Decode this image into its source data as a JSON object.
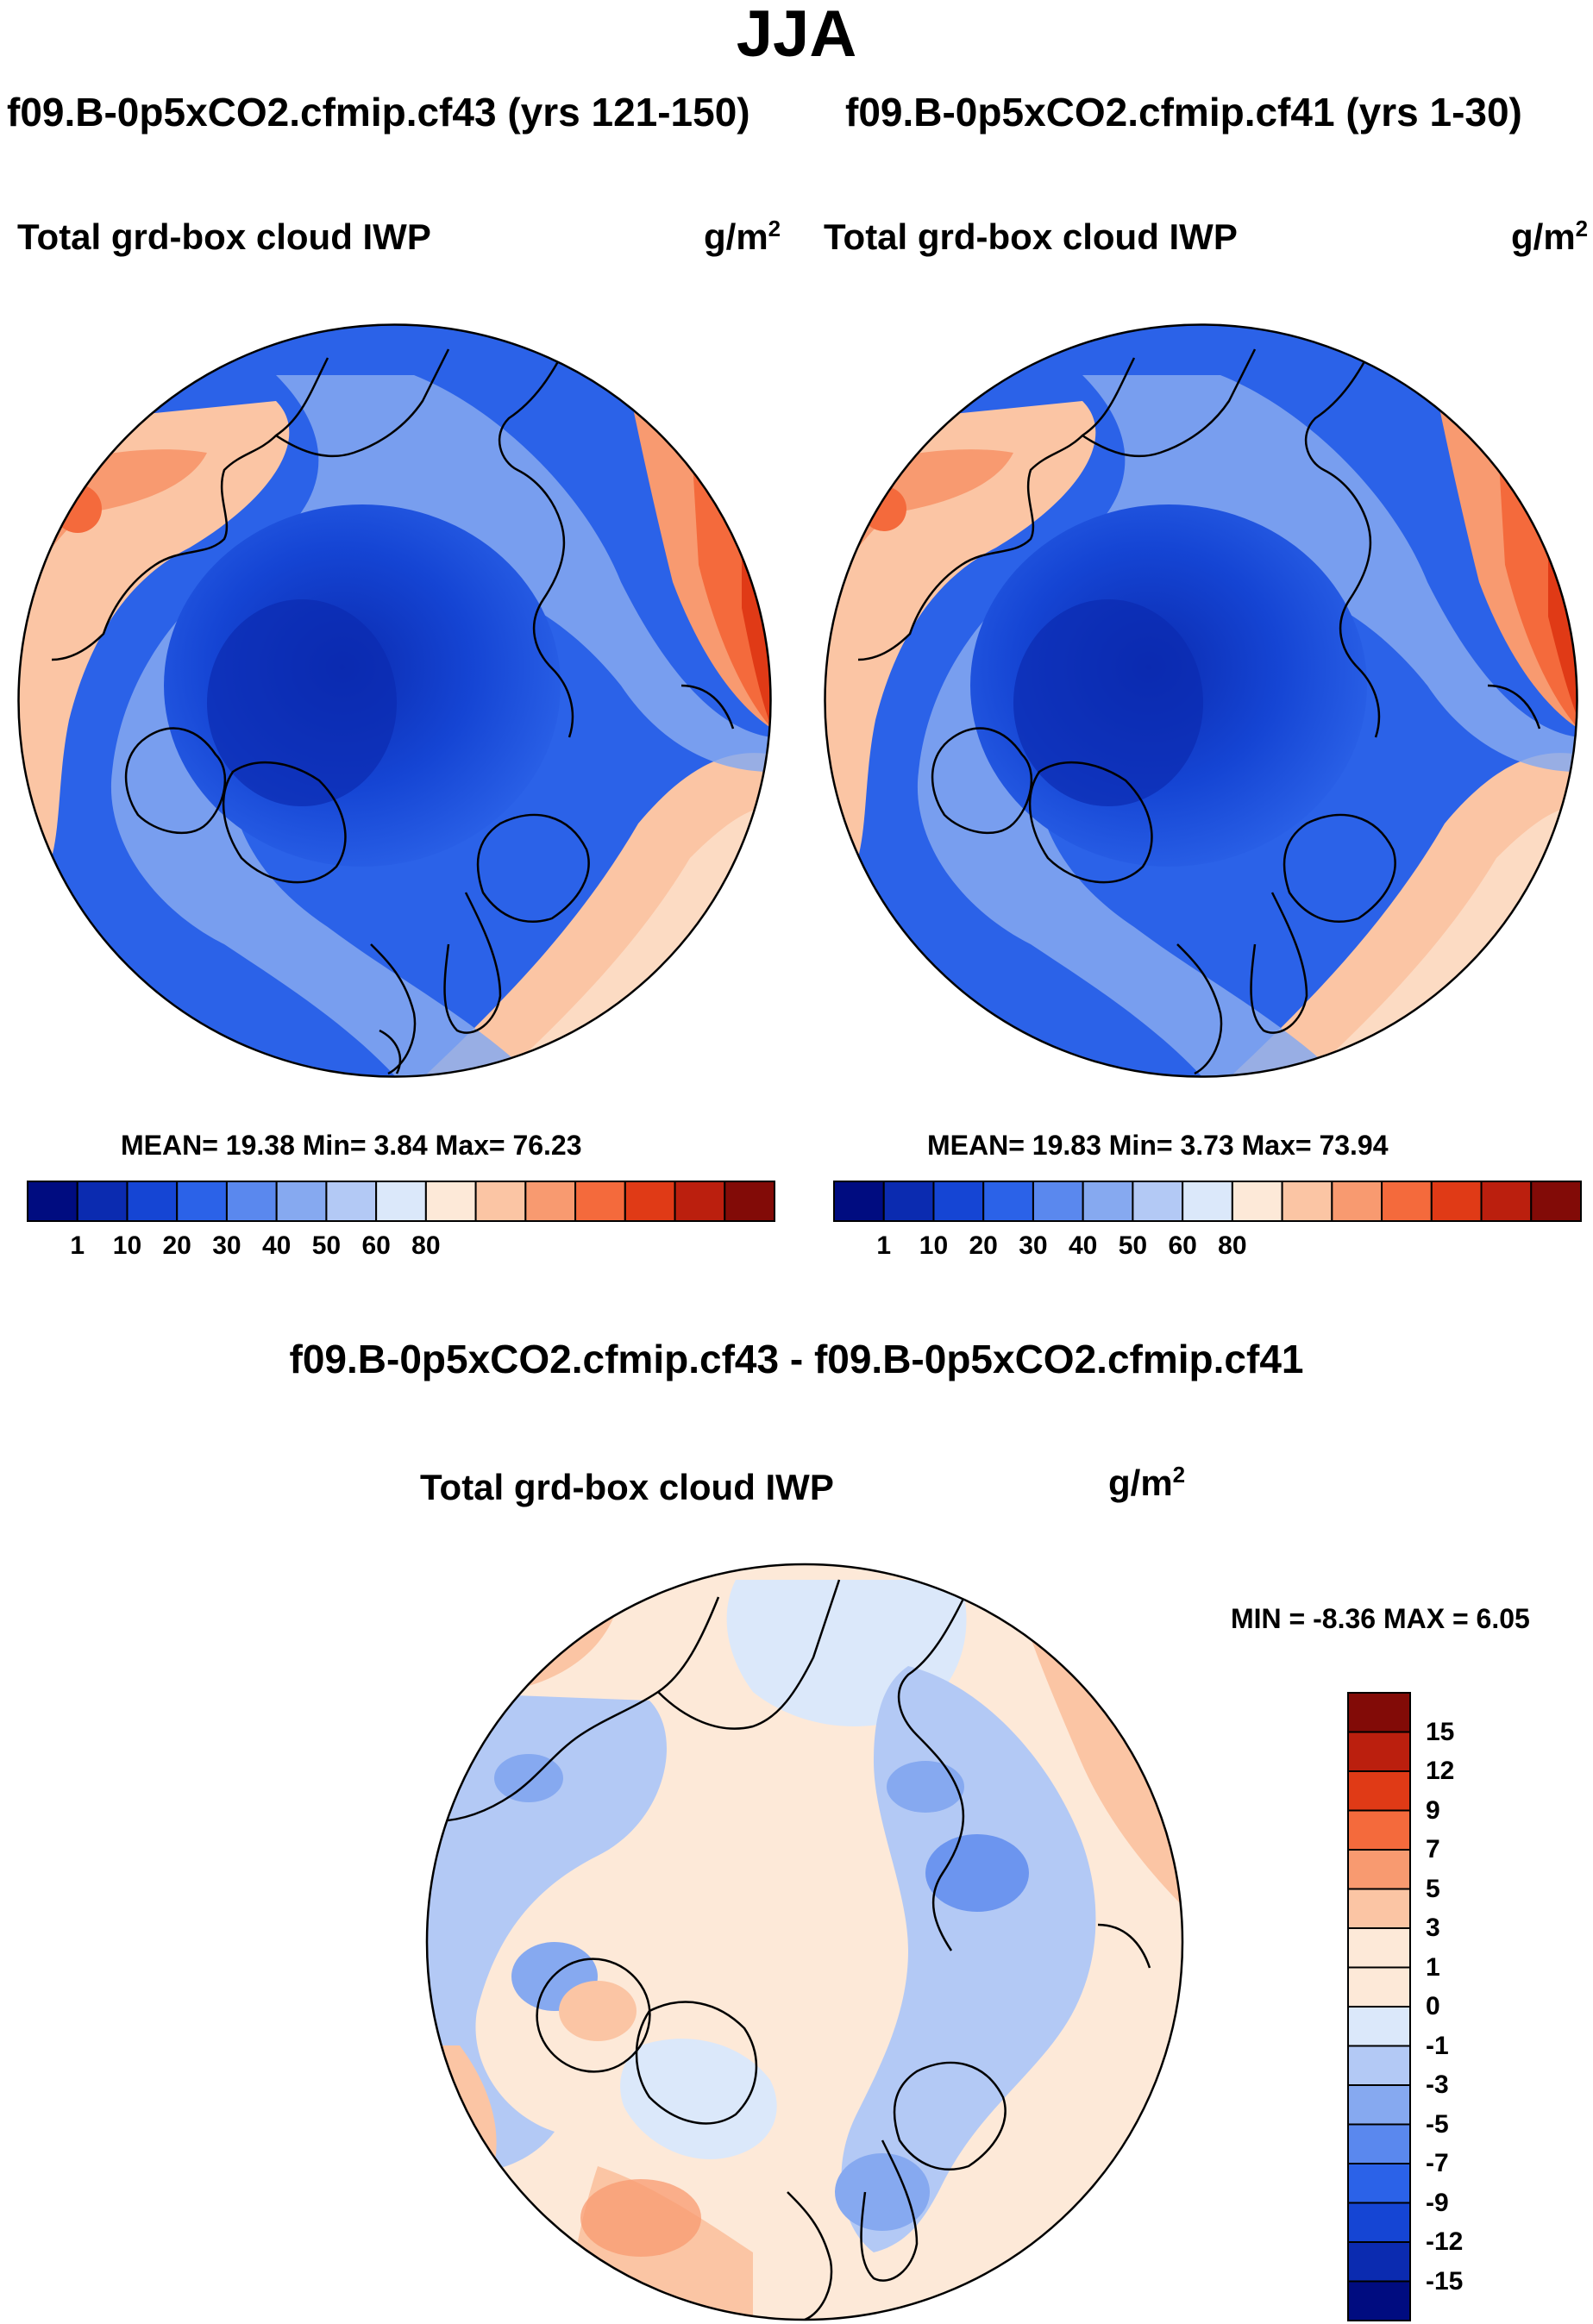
{
  "season": "JJA",
  "panels": [
    {
      "case_title": "f09.B-0p5xCO2.cfmip.cf43 (yrs 121-150)",
      "variable": "Total grd-box cloud IWP",
      "units_base": "g/m",
      "units_exp": "2",
      "stats": "MEAN=  19.38  Min=   3.84  Max=  76.23"
    },
    {
      "case_title": "f09.B-0p5xCO2.cfmip.cf41 (yrs 1-30)",
      "variable": "Total grd-box cloud IWP",
      "units_base": "g/m",
      "units_exp": "2",
      "stats": "MEAN=  19.83  Min=   3.73  Max=  73.94"
    }
  ],
  "difference": {
    "title": "f09.B-0p5xCO2.cfmip.cf43 - f09.B-0p5xCO2.cfmip.cf41",
    "variable": "Total grd-box cloud IWP",
    "units_base": "g/m",
    "units_exp": "2",
    "stats": "MIN =  -8.36 MAX =    6.05"
  },
  "colorbar_main": {
    "labels": [
      "1",
      "10",
      "20",
      "30",
      "40",
      "50",
      "60",
      "80"
    ],
    "colors": [
      "#000c80",
      "#0b2bb0",
      "#1545d4",
      "#2b62e8",
      "#5a88ee",
      "#86a9f0",
      "#b3c9f5",
      "#dbe8fa",
      "#fde9d8",
      "#fbc5a4",
      "#f89a70",
      "#f46a3c",
      "#e03a16",
      "#bb1f0e",
      "#820b07"
    ]
  },
  "colorbar_diff": {
    "labels": [
      "15",
      "12",
      "9",
      "7",
      "5",
      "3",
      "1",
      "0",
      "-1",
      "-3",
      "-5",
      "-7",
      "-9",
      "-12",
      "-15"
    ],
    "colors_top_to_bottom": [
      "#820b07",
      "#bb1f0e",
      "#e03a16",
      "#f46a3c",
      "#f89a70",
      "#fbc5a4",
      "#fde9d8",
      "#dbe8fa",
      "#b3c9f5",
      "#86a9f0",
      "#5a88ee",
      "#2b62e8",
      "#1545d4",
      "#0b2bb0",
      "#000c80"
    ]
  }
}
